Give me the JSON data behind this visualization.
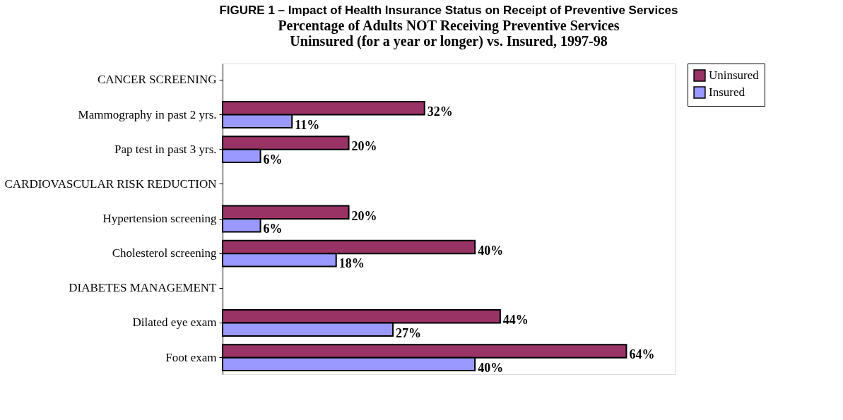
{
  "chart_data": {
    "type": "bar",
    "orientation": "horizontal",
    "title": "FIGURE 1 – Impact of Health Insurance Status on Receipt of Preventive Services",
    "subtitle": "Percentage of Adults NOT Receiving Preventive Services\nUninsured (for a year or longer) vs. Insured, 1997-98",
    "categories": [
      "CANCER SCREENING",
      "Mammography in past 2 yrs.",
      "Pap test in past 3 yrs.",
      "CARDIOVASCULAR RISK REDUCTION",
      "Hypertension screening",
      "Cholesterol screening",
      "DIABETES MANAGEMENT",
      "Dilated eye exam",
      "Foot exam"
    ],
    "series": [
      {
        "name": "Uninsured",
        "color": "#993366",
        "values": [
          null,
          32,
          20,
          null,
          20,
          40,
          null,
          44,
          64
        ],
        "value_labels": [
          null,
          "32%",
          "20%",
          null,
          "20%",
          "40%",
          null,
          "44%",
          "64%"
        ]
      },
      {
        "name": "Insured",
        "color": "#9999ff",
        "values": [
          null,
          11,
          6,
          null,
          6,
          18,
          null,
          27,
          40
        ],
        "value_labels": [
          null,
          "11%",
          "6%",
          null,
          "6%",
          "18%",
          null,
          "27%",
          "40%"
        ]
      }
    ],
    "legend": "right",
    "grid": false
  }
}
